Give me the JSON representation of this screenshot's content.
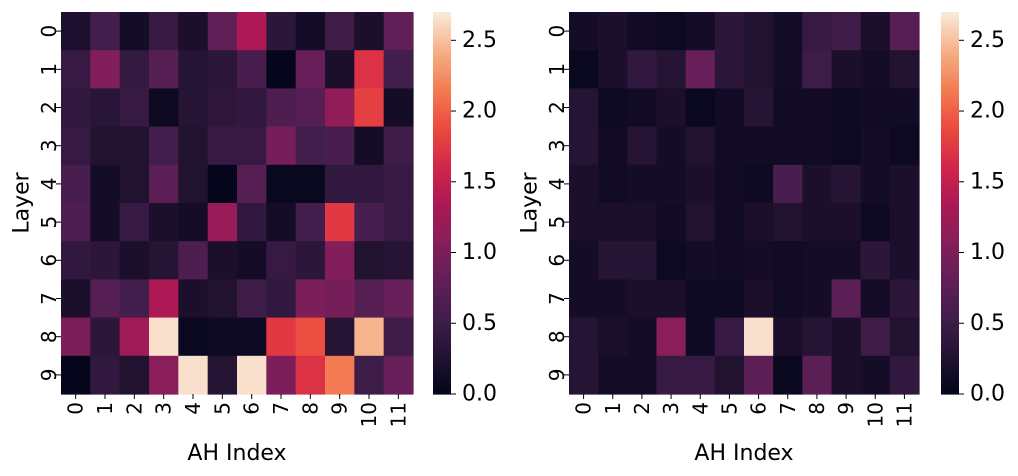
{
  "chart_data": [
    {
      "type": "heatmap",
      "xlabel": "AH Index",
      "ylabel": "Layer",
      "x_ticks": [
        "0",
        "1",
        "2",
        "3",
        "4",
        "5",
        "6",
        "7",
        "8",
        "9",
        "10",
        "11"
      ],
      "y_ticks": [
        "0",
        "1",
        "2",
        "3",
        "4",
        "5",
        "6",
        "7",
        "8",
        "9"
      ],
      "colorbar": {
        "range": [
          0,
          2.7
        ],
        "ticks": [
          "0.0",
          "0.5",
          "1.0",
          "1.5",
          "2.0",
          "2.5"
        ],
        "colormap": "rocket"
      },
      "values": [
        [
          0.22,
          0.55,
          0.15,
          0.45,
          0.2,
          0.8,
          1.35,
          0.35,
          0.15,
          0.5,
          0.2,
          0.8
        ],
        [
          0.45,
          1.05,
          0.42,
          0.7,
          0.3,
          0.35,
          0.6,
          0.02,
          0.85,
          0.2,
          1.7,
          0.55
        ],
        [
          0.4,
          0.32,
          0.45,
          0.08,
          0.3,
          0.38,
          0.4,
          0.65,
          0.7,
          1.15,
          1.8,
          0.15
        ],
        [
          0.45,
          0.25,
          0.25,
          0.55,
          0.25,
          0.45,
          0.45,
          0.95,
          0.55,
          0.6,
          0.15,
          0.5
        ],
        [
          0.6,
          0.15,
          0.25,
          0.75,
          0.25,
          0.02,
          0.7,
          0.05,
          0.05,
          0.4,
          0.4,
          0.45
        ],
        [
          0.65,
          0.15,
          0.45,
          0.2,
          0.15,
          1.2,
          0.4,
          0.15,
          0.55,
          1.75,
          0.6,
          0.45
        ],
        [
          0.4,
          0.35,
          0.2,
          0.3,
          0.65,
          0.2,
          0.15,
          0.45,
          0.35,
          1.05,
          0.25,
          0.3
        ],
        [
          0.2,
          0.7,
          0.55,
          1.35,
          0.2,
          0.25,
          0.5,
          0.4,
          1.0,
          0.95,
          0.7,
          0.85
        ],
        [
          1.0,
          0.35,
          1.25,
          2.65,
          0.05,
          0.1,
          0.1,
          1.75,
          1.9,
          0.3,
          2.45,
          0.5
        ],
        [
          0.02,
          0.4,
          0.25,
          1.1,
          2.65,
          0.3,
          2.65,
          1.0,
          1.7,
          2.15,
          0.5,
          0.85
        ]
      ]
    },
    {
      "type": "heatmap",
      "xlabel": "AH Index",
      "ylabel": "Layer",
      "x_ticks": [
        "0",
        "1",
        "2",
        "3",
        "4",
        "5",
        "6",
        "7",
        "8",
        "9",
        "10",
        "11"
      ],
      "y_ticks": [
        "0",
        "1",
        "2",
        "3",
        "4",
        "5",
        "6",
        "7",
        "8",
        "9"
      ],
      "colorbar": {
        "range": [
          0,
          2.7
        ],
        "ticks": [
          "0.0",
          "0.5",
          "1.0",
          "1.5",
          "2.0",
          "2.5"
        ],
        "colormap": "rocket"
      },
      "values": [
        [
          0.15,
          0.2,
          0.12,
          0.08,
          0.15,
          0.35,
          0.25,
          0.15,
          0.45,
          0.5,
          0.2,
          0.7
        ],
        [
          0.05,
          0.2,
          0.4,
          0.3,
          0.85,
          0.35,
          0.25,
          0.15,
          0.5,
          0.2,
          0.15,
          0.25
        ],
        [
          0.3,
          0.1,
          0.12,
          0.2,
          0.05,
          0.12,
          0.3,
          0.12,
          0.12,
          0.1,
          0.12,
          0.12
        ],
        [
          0.3,
          0.12,
          0.3,
          0.15,
          0.25,
          0.12,
          0.12,
          0.12,
          0.12,
          0.08,
          0.15,
          0.08
        ],
        [
          0.2,
          0.12,
          0.15,
          0.15,
          0.2,
          0.12,
          0.1,
          0.6,
          0.2,
          0.3,
          0.15,
          0.2
        ],
        [
          0.2,
          0.2,
          0.2,
          0.12,
          0.25,
          0.12,
          0.2,
          0.25,
          0.2,
          0.2,
          0.1,
          0.2
        ],
        [
          0.15,
          0.3,
          0.3,
          0.08,
          0.15,
          0.12,
          0.15,
          0.12,
          0.15,
          0.15,
          0.35,
          0.2
        ],
        [
          0.15,
          0.15,
          0.2,
          0.2,
          0.1,
          0.1,
          0.2,
          0.12,
          0.15,
          0.75,
          0.15,
          0.35
        ],
        [
          0.3,
          0.2,
          0.15,
          1.1,
          0.1,
          0.45,
          2.65,
          0.2,
          0.3,
          0.2,
          0.5,
          0.25
        ],
        [
          0.3,
          0.15,
          0.15,
          0.45,
          0.45,
          0.25,
          0.75,
          0.05,
          0.75,
          0.2,
          0.15,
          0.4
        ]
      ]
    }
  ]
}
